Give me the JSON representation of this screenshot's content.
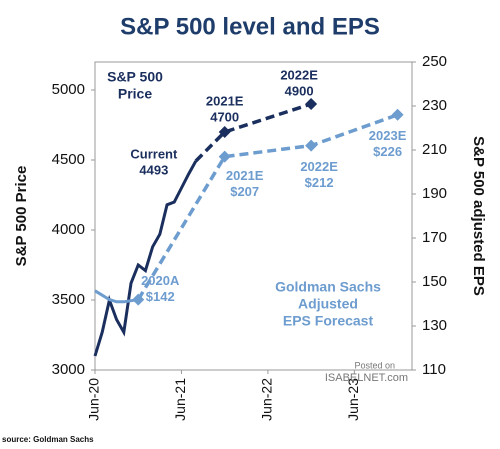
{
  "chart_data": {
    "type": "line",
    "title": "S&P 500 level and EPS",
    "ylabel": "S&P 500 Price",
    "y2label": "S&P 500 adjusted EPS",
    "source": "source: Goldman Sachs",
    "watermark": [
      "Posted on",
      "ISABELNET.com"
    ],
    "annotations": [
      [
        "S&P 500",
        "Price"
      ],
      [
        "Goldman Sachs",
        "Adjusted",
        "EPS Forecast"
      ]
    ],
    "xlim": [
      "2020-06",
      "2024-02"
    ],
    "xticks": [
      {
        "value": "2020-06",
        "label": "Jun-20"
      },
      {
        "value": "2021-06",
        "label": "Jun-21"
      },
      {
        "value": "2022-06",
        "label": "Jun-22"
      },
      {
        "value": "2023-06",
        "label": "Jun-23"
      }
    ],
    "ylim": [
      3000,
      5200
    ],
    "yticks": [
      3000,
      3500,
      4000,
      4500,
      5000
    ],
    "y2lim": [
      110,
      250
    ],
    "y2ticks": [
      110,
      130,
      150,
      170,
      190,
      210,
      230,
      250
    ],
    "series": [
      {
        "color": "#1b2f5e",
        "dash": false,
        "x": [
          "2020-06",
          "2020-07",
          "2020-08",
          "2020-09",
          "2020-10",
          "2020-11",
          "2020-12",
          "2021-01",
          "2021-02",
          "2021-03",
          "2021-04",
          "2021-05",
          "2021-06",
          "2021-07",
          "2021-08"
        ],
        "values": [
          3100,
          3270,
          3500,
          3360,
          3270,
          3620,
          3750,
          3710,
          3880,
          3970,
          4180,
          4200,
          4300,
          4400,
          4493
        ]
      },
      {
        "color": "#1b2f5e",
        "dash": true,
        "markers": [
          false,
          true,
          true
        ],
        "x": [
          "2021-08",
          "2021-12",
          "2022-12"
        ],
        "values": [
          4493,
          4700,
          4900
        ],
        "point_labels": [
          "Current",
          "2021E",
          "2022E"
        ]
      },
      {
        "color": "#6d9ccf",
        "dash": false,
        "axis": "y2",
        "x": [
          "2020-06",
          "2020-07",
          "2020-08",
          "2020-09",
          "2020-10",
          "2020-11",
          "2020-12"
        ],
        "values": [
          146,
          144,
          142,
          141,
          141,
          141.5,
          142
        ]
      },
      {
        "color": "#6d9ccf",
        "dash": true,
        "axis": "y2",
        "markers": [
          true,
          true,
          true,
          true
        ],
        "x": [
          "2020-12",
          "2021-12",
          "2022-12",
          "2023-12"
        ],
        "values": [
          142,
          207,
          212,
          226
        ],
        "value_labels": [
          "$142",
          "$207",
          "$212",
          "$226"
        ],
        "point_labels": [
          "2020A",
          "2021E",
          "2022E",
          "2023E"
        ]
      }
    ]
  }
}
